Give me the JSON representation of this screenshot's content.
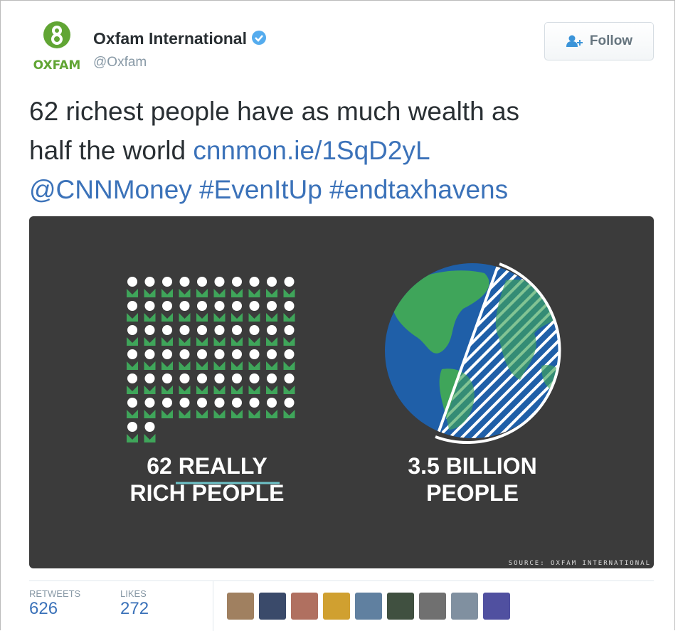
{
  "account": {
    "logo_text": "OXFAM",
    "name": "Oxfam International",
    "handle": "@Oxfam",
    "follow_button": "Follow"
  },
  "tweet": {
    "text_lines": [
      "62 richest people have as much wealth as",
      "half the world"
    ],
    "link": "cnnmon.ie/1SqD2yL",
    "mention": "@CNNMoney",
    "hashtags": [
      "#EvenItUp",
      "#endtaxhavens"
    ]
  },
  "infographic": {
    "left_label": [
      "62 REALLY",
      "RICH PEOPLE"
    ],
    "right_label": [
      "3.5 BILLION",
      "PEOPLE"
    ],
    "source": "SOURCE: OXFAM INTERNATIONAL"
  },
  "stats": [
    {
      "label": "RETWEETS",
      "value": 626
    },
    {
      "label": "LIKES",
      "value": 272
    }
  ]
}
